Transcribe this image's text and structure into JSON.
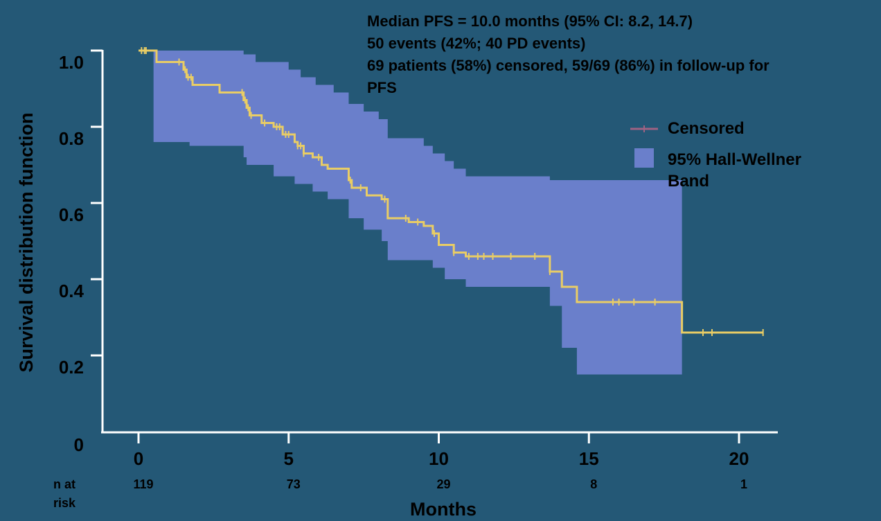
{
  "chart_data": {
    "type": "line",
    "ylabel": "Survival distribution function",
    "xlabel": "Months",
    "xlim": [
      0,
      21
    ],
    "ylim": [
      0,
      1.0
    ],
    "xticks": [
      0,
      5,
      10,
      15,
      20
    ],
    "yticks": [
      0.2,
      0.4,
      0.6,
      0.8,
      1.0
    ],
    "xtick_labels": [
      "0",
      "5",
      "10",
      "15",
      "20"
    ],
    "ytick_labels": [
      "0.2",
      "0.4",
      "0.6",
      "0.8",
      "1.0"
    ],
    "y_zero_label": "0",
    "annotations": [
      "Median PFS = 10.0 months (95% CI: 8.2, 14.7)",
      "50 events (42%; 40 PD events)",
      "69 patients (58%) censored, 59/69 (86%) in follow-up for",
      "PFS"
    ],
    "legend": {
      "placement": "right",
      "entries": [
        {
          "label": "Censored",
          "marker": "line-with-tick",
          "color": "#a06283"
        },
        {
          "label_lines": [
            "95% Hall-Wellner",
            "Band"
          ],
          "marker": "box",
          "color": "#6a7fcb"
        }
      ]
    },
    "at_risk": {
      "label_lines": [
        "n at",
        "risk"
      ],
      "x": [
        0,
        5,
        10,
        15,
        20
      ],
      "counts": [
        "119",
        "73",
        "29",
        "8",
        "1"
      ]
    },
    "colors": {
      "background": "#245876",
      "curve": "#e9cd65",
      "band": "#6a7fcb",
      "axis": "#ffffff",
      "text": "#000000"
    },
    "survival_curve": {
      "name": "",
      "steps": [
        [
          0,
          1.0
        ],
        [
          0.6,
          0.97
        ],
        [
          1.5,
          0.95
        ],
        [
          1.6,
          0.93
        ],
        [
          1.8,
          0.91
        ],
        [
          2.7,
          0.89
        ],
        [
          3.5,
          0.87
        ],
        [
          3.6,
          0.85
        ],
        [
          3.7,
          0.83
        ],
        [
          4.1,
          0.81
        ],
        [
          4.5,
          0.8
        ],
        [
          4.8,
          0.78
        ],
        [
          5.2,
          0.76
        ],
        [
          5.3,
          0.75
        ],
        [
          5.5,
          0.73
        ],
        [
          5.8,
          0.72
        ],
        [
          6.1,
          0.7
        ],
        [
          6.3,
          0.69
        ],
        [
          7.0,
          0.66
        ],
        [
          7.1,
          0.64
        ],
        [
          7.6,
          0.62
        ],
        [
          8.1,
          0.61
        ],
        [
          8.3,
          0.56
        ],
        [
          9.0,
          0.55
        ],
        [
          9.5,
          0.54
        ],
        [
          9.8,
          0.52
        ],
        [
          10.0,
          0.49
        ],
        [
          10.5,
          0.47
        ],
        [
          10.9,
          0.46
        ],
        [
          13.7,
          0.42
        ],
        [
          14.1,
          0.38
        ],
        [
          14.6,
          0.34
        ],
        [
          18.1,
          0.26
        ],
        [
          20.8,
          0.26
        ]
      ],
      "censored_times": [
        0.1,
        0.2,
        0.25,
        1.35,
        1.55,
        1.65,
        1.75,
        3.45,
        3.55,
        3.65,
        3.75,
        4.2,
        4.6,
        4.7,
        4.9,
        5.0,
        5.3,
        5.4,
        5.5,
        6.0,
        7.05,
        7.4,
        8.2,
        8.9,
        9.3,
        9.85,
        10.5,
        11.0,
        11.3,
        11.5,
        11.8,
        12.4,
        13.2,
        13.7,
        15.8,
        16.0,
        16.5,
        17.2,
        18.8,
        19.1,
        20.8
      ]
    },
    "confidence_band": {
      "name": "95% Hall-Wellner Band",
      "upper": [
        [
          0,
          1.0
        ],
        [
          1.7,
          1.0
        ],
        [
          3.5,
          0.99
        ],
        [
          3.9,
          0.97
        ],
        [
          5.0,
          0.95
        ],
        [
          5.4,
          0.93
        ],
        [
          5.9,
          0.91
        ],
        [
          6.5,
          0.89
        ],
        [
          7.0,
          0.86
        ],
        [
          7.5,
          0.84
        ],
        [
          8.0,
          0.82
        ],
        [
          8.3,
          0.77
        ],
        [
          9.5,
          0.75
        ],
        [
          9.8,
          0.73
        ],
        [
          10.2,
          0.71
        ],
        [
          10.5,
          0.69
        ],
        [
          10.9,
          0.67
        ],
        [
          13.7,
          0.66
        ],
        [
          14.6,
          0.66
        ],
        [
          18.1,
          0.66
        ]
      ],
      "lower": [
        [
          0.5,
          0.76
        ],
        [
          1.7,
          0.75
        ],
        [
          3.5,
          0.72
        ],
        [
          3.6,
          0.7
        ],
        [
          4.5,
          0.67
        ],
        [
          5.2,
          0.65
        ],
        [
          5.8,
          0.63
        ],
        [
          6.3,
          0.61
        ],
        [
          7.0,
          0.56
        ],
        [
          7.5,
          0.53
        ],
        [
          8.1,
          0.5
        ],
        [
          8.3,
          0.45
        ],
        [
          9.0,
          0.45
        ],
        [
          9.8,
          0.43
        ],
        [
          10.2,
          0.4
        ],
        [
          10.9,
          0.38
        ],
        [
          13.7,
          0.33
        ],
        [
          14.1,
          0.22
        ],
        [
          14.6,
          0.15
        ],
        [
          18.1,
          0.15
        ]
      ]
    }
  }
}
